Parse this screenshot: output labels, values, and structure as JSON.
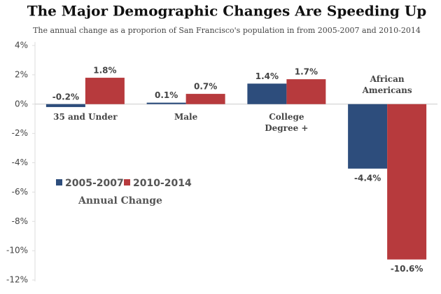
{
  "chart_data": {
    "type": "bar",
    "title": "The Major Demographic Changes Are Speeding Up",
    "subtitle": "The annual change as a proporion of San Francisco's population in from 2005-2007 and 2010-2014",
    "categories": [
      "35 and Under",
      "Male",
      "College Degree +",
      "African Americans"
    ],
    "series": [
      {
        "name": "2005-2007",
        "color": "#2d4d7c",
        "values": [
          -0.2,
          0.1,
          1.4,
          -4.4
        ],
        "value_labels": [
          "-0.2%",
          "0.1%",
          "1.4%",
          "-4.4%"
        ]
      },
      {
        "name": "2010-2014",
        "color": "#b73a3d",
        "values": [
          1.8,
          0.7,
          1.7,
          -10.6
        ],
        "value_labels": [
          "1.8%",
          "0.7%",
          "1.7%",
          "-10.6%"
        ]
      }
    ],
    "ylim": [
      4,
      -12
    ],
    "yticks": [
      {
        "value": 4,
        "label": "4%"
      },
      {
        "value": 2,
        "label": "2%"
      },
      {
        "value": 0,
        "label": "0%"
      },
      {
        "value": -2,
        "label": "-2%"
      },
      {
        "value": -4,
        "label": "-4%"
      },
      {
        "value": -6,
        "label": "-6%"
      },
      {
        "value": -8,
        "label": "-8%"
      },
      {
        "value": -10,
        "label": "-10%"
      },
      {
        "value": -12,
        "label": "-12%"
      }
    ],
    "legend_title": "Annual Change",
    "grid": false
  }
}
